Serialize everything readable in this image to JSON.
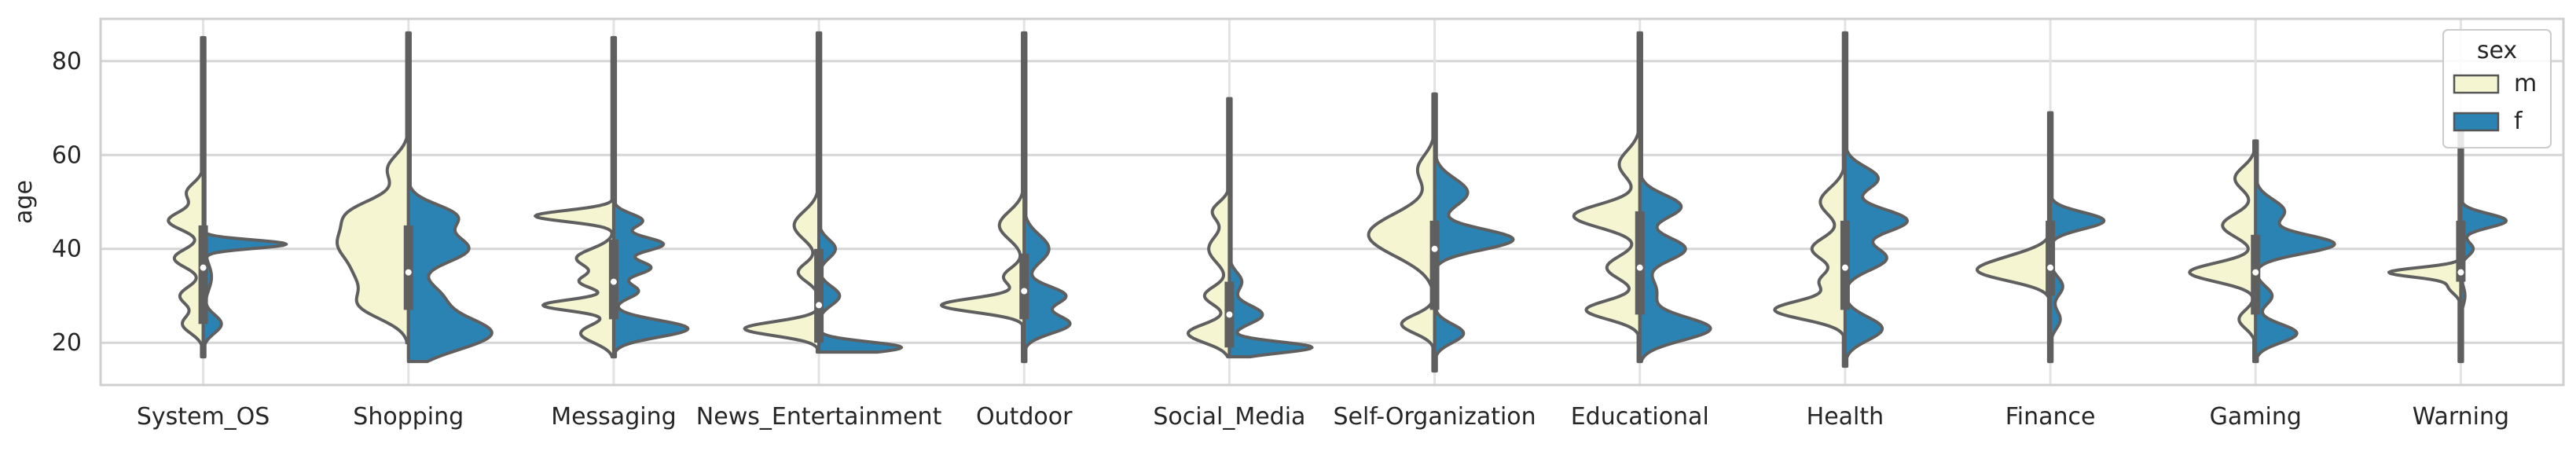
{
  "chart_data": {
    "type": "violin",
    "split": true,
    "title": "",
    "xlabel": "",
    "ylabel": "age",
    "ylim": [
      11,
      89
    ],
    "yticks": [
      20,
      40,
      60,
      80
    ],
    "grid": true,
    "legend": {
      "title": "sex",
      "placement": "top-right",
      "entries": [
        {
          "label": "m",
          "color": "#f5f5d2"
        },
        {
          "label": "f",
          "color": "#2b83b4"
        }
      ]
    },
    "categories": [
      "System_OS",
      "Shopping",
      "Messaging",
      "News_Entertainment",
      "Outdoor",
      "Social_Media",
      "Self-Organization",
      "Educational",
      "Health",
      "Finance",
      "Gaming",
      "Warning"
    ],
    "violins": [
      {
        "category": "System_OS",
        "m": {
          "min": 17,
          "max": 85,
          "peaks": [
            [
              46,
              0.42,
              2
            ],
            [
              38,
              0.35,
              2
            ],
            [
              30,
              0.28,
              2
            ],
            [
              24,
              0.25,
              2
            ],
            [
              52,
              0.2,
              2
            ]
          ]
        },
        "f": {
          "min": 17,
          "max": 85,
          "peaks": [
            [
              41,
              1.0,
              0.9
            ],
            [
              24,
              0.22,
              2
            ],
            [
              34,
              0.1,
              3
            ]
          ]
        },
        "box": {
          "q1": 24,
          "median": 36,
          "q3": 45
        }
      },
      {
        "category": "Shopping",
        "m": {
          "min": 20,
          "max": 86,
          "peaks": [
            [
              41,
              0.8,
              4
            ],
            [
              48,
              0.55,
              3
            ],
            [
              28,
              0.55,
              3
            ],
            [
              34,
              0.4,
              3
            ],
            [
              57,
              0.25,
              3
            ]
          ]
        },
        "f": {
          "min": 16,
          "max": 86,
          "peaks": [
            [
              22,
              1.0,
              3.5
            ],
            [
              40,
              0.72,
              3
            ],
            [
              47,
              0.55,
              2.5
            ],
            [
              30,
              0.35,
              3
            ]
          ]
        },
        "box": {
          "q1": 27,
          "median": 35,
          "q3": 45
        }
      },
      {
        "category": "Messaging",
        "m": {
          "min": 17,
          "max": 85,
          "peaks": [
            [
              47,
              0.95,
              1.2
            ],
            [
              28,
              0.85,
              1.2
            ],
            [
              38,
              0.45,
              2
            ],
            [
              22,
              0.4,
              2
            ],
            [
              33,
              0.4,
              1.5
            ]
          ]
        },
        "f": {
          "min": 17,
          "max": 85,
          "peaks": [
            [
              23,
              0.9,
              1.8
            ],
            [
              41,
              0.6,
              1.5
            ],
            [
              36,
              0.45,
              1.5
            ],
            [
              46,
              0.35,
              1.5
            ],
            [
              31,
              0.3,
              1.5
            ]
          ]
        },
        "box": {
          "q1": 25,
          "median": 33,
          "q3": 42
        }
      },
      {
        "category": "News_Entertainment",
        "m": {
          "min": 18,
          "max": 86,
          "peaks": [
            [
              23,
              0.9,
              1.5
            ],
            [
              45,
              0.3,
              3
            ],
            [
              35,
              0.25,
              2
            ]
          ]
        },
        "f": {
          "min": 18,
          "max": 86,
          "peaks": [
            [
              19,
              1.0,
              1.2
            ],
            [
              30,
              0.25,
              2
            ],
            [
              40,
              0.2,
              2
            ]
          ]
        },
        "box": {
          "q1": 20,
          "median": 28,
          "q3": 40
        }
      },
      {
        "category": "Outdoor",
        "m": {
          "min": 16,
          "max": 86,
          "peaks": [
            [
              28,
              1.0,
              1.5
            ],
            [
              45,
              0.3,
              3
            ],
            [
              34,
              0.25,
              2
            ]
          ]
        },
        "f": {
          "min": 16,
          "max": 86,
          "peaks": [
            [
              24,
              0.55,
              2
            ],
            [
              30,
              0.5,
              2
            ],
            [
              40,
              0.3,
              3
            ]
          ]
        },
        "box": {
          "q1": 25,
          "median": 31,
          "q3": 39
        }
      },
      {
        "category": "Social_Media",
        "m": {
          "min": 17,
          "max": 72,
          "peaks": [
            [
              22,
              0.5,
              2
            ],
            [
              30,
              0.3,
              2
            ],
            [
              40,
              0.25,
              3
            ],
            [
              48,
              0.2,
              2
            ]
          ]
        },
        "f": {
          "min": 17,
          "max": 72,
          "peaks": [
            [
              19,
              1.0,
              1.2
            ],
            [
              26,
              0.4,
              2
            ],
            [
              33,
              0.15,
              2
            ]
          ]
        },
        "box": {
          "q1": 19,
          "median": 26,
          "q3": 33
        }
      },
      {
        "category": "Self-Organization",
        "m": {
          "min": 14,
          "max": 73,
          "peaks": [
            [
              43,
              0.8,
              4.5
            ],
            [
              24,
              0.4,
              2
            ],
            [
              57,
              0.2,
              3
            ]
          ]
        },
        "f": {
          "min": 14,
          "max": 73,
          "peaks": [
            [
              42,
              0.95,
              2.2
            ],
            [
              22,
              0.35,
              2
            ],
            [
              52,
              0.4,
              3
            ]
          ]
        },
        "box": {
          "q1": 27,
          "median": 40,
          "q3": 46
        }
      },
      {
        "category": "Educational",
        "m": {
          "min": 16,
          "max": 86,
          "peaks": [
            [
              47,
              0.8,
              2.5
            ],
            [
              27,
              0.65,
              2
            ],
            [
              36,
              0.4,
              2.5
            ],
            [
              58,
              0.25,
              3
            ]
          ]
        },
        "f": {
          "min": 16,
          "max": 86,
          "peaks": [
            [
              23,
              0.85,
              2.5
            ],
            [
              40,
              0.55,
              2.5
            ],
            [
              49,
              0.5,
              2.5
            ],
            [
              31,
              0.2,
              3
            ]
          ]
        },
        "box": {
          "q1": 26,
          "median": 36,
          "q3": 48
        }
      },
      {
        "category": "Health",
        "m": {
          "min": 15,
          "max": 86,
          "peaks": [
            [
              27,
              0.85,
              2
            ],
            [
              40,
              0.4,
              2.5
            ],
            [
              50,
              0.3,
              3
            ],
            [
              33,
              0.3,
              2
            ]
          ]
        },
        "f": {
          "min": 15,
          "max": 86,
          "peaks": [
            [
              46,
              0.75,
              2.5
            ],
            [
              38,
              0.5,
              2.5
            ],
            [
              23,
              0.45,
              2.5
            ],
            [
              55,
              0.4,
              2.5
            ]
          ]
        },
        "box": {
          "q1": 27,
          "median": 36,
          "q3": 46
        }
      },
      {
        "category": "Finance",
        "m": {
          "min": 16,
          "max": 69,
          "peaks": [
            [
              35,
              0.75,
              2
            ],
            [
              38,
              0.35,
              2
            ]
          ]
        },
        "f": {
          "min": 16,
          "max": 69,
          "peaks": [
            [
              46,
              0.65,
              1.8
            ],
            [
              32,
              0.15,
              2
            ],
            [
              25,
              0.12,
              2
            ]
          ]
        },
        "box": {
          "q1": 30,
          "median": 36,
          "q3": 46
        }
      },
      {
        "category": "Gaming",
        "m": {
          "min": 16,
          "max": 63,
          "peaks": [
            [
              35,
              0.8,
              2
            ],
            [
              45,
              0.4,
              2.5
            ],
            [
              55,
              0.25,
              2.5
            ],
            [
              25,
              0.2,
              2
            ]
          ]
        },
        "f": {
          "min": 16,
          "max": 63,
          "peaks": [
            [
              41,
              0.95,
              2
            ],
            [
              22,
              0.5,
              2
            ],
            [
              48,
              0.35,
              2.5
            ],
            [
              30,
              0.2,
              2
            ]
          ]
        },
        "box": {
          "q1": 26,
          "median": 35,
          "q3": 43
        }
      },
      {
        "category": "Warning",
        "m": {
          "min": 16,
          "max": 68,
          "peaks": [
            [
              35,
              0.85,
              1.0
            ],
            [
              32,
              0.15,
              1.5
            ]
          ]
        },
        "f": {
          "min": 16,
          "max": 68,
          "peaks": [
            [
              46,
              0.55,
              1.5
            ],
            [
              40,
              0.15,
              1.5
            ],
            [
              30,
              0.05,
              2
            ]
          ]
        },
        "box": {
          "q1": 33,
          "median": 35,
          "q3": 46
        }
      }
    ]
  }
}
